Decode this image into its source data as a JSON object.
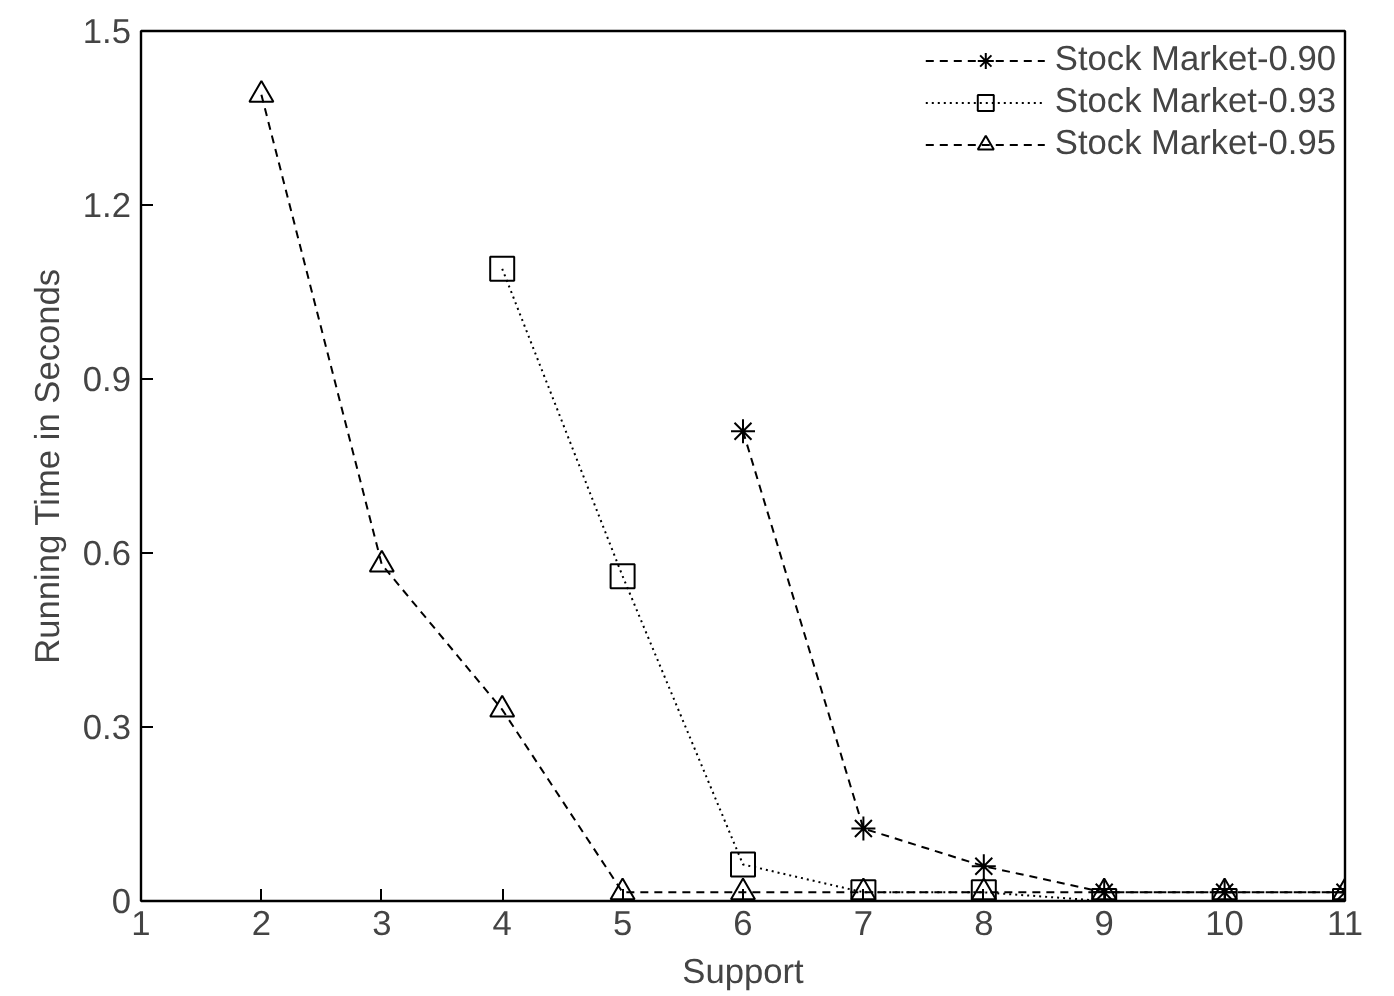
{
  "chart_data": {
    "type": "line",
    "xlabel": "Support",
    "ylabel": "Running Time in Seconds",
    "x": [
      2,
      3,
      4,
      5,
      6,
      7,
      8,
      9,
      10,
      11
    ],
    "series": [
      {
        "name": "Stock Market-0.90",
        "color": "#000000",
        "marker": "cross",
        "line_style": "dashed",
        "values": [
          null,
          null,
          null,
          null,
          0.81,
          0.125,
          0.06,
          0.015,
          0.015,
          0.015
        ]
      },
      {
        "name": "Stock Market-0.93",
        "color": "#000000",
        "marker": "square",
        "line_style": "dotted",
        "values": [
          null,
          null,
          1.09,
          0.56,
          0.063,
          0.015,
          0.015,
          0,
          0,
          0
        ]
      },
      {
        "name": "Stock Market-0.95",
        "color": "#000000",
        "marker": "triangle",
        "line_style": "dashed",
        "values": [
          1.39,
          0.58,
          0.33,
          0.015,
          0.015,
          0.015,
          0.015,
          0.015,
          0.015,
          0.015
        ]
      }
    ],
    "xlim": [
      1,
      11
    ],
    "ylim": [
      0,
      1.5
    ],
    "xticks": [
      1,
      2,
      3,
      4,
      5,
      6,
      7,
      8,
      9,
      10,
      11
    ],
    "yticks": [
      0,
      {
        "value": 0.3,
        "label": "0.3"
      },
      {
        "value": 0.6,
        "label": "0.6"
      },
      {
        "value": 0.9,
        "label": "0.9"
      },
      {
        "value": 1.2,
        "label": "1.2"
      },
      {
        "value": 1.5,
        "label": "1.5"
      }
    ],
    "grid": false,
    "legend": "top right"
  }
}
